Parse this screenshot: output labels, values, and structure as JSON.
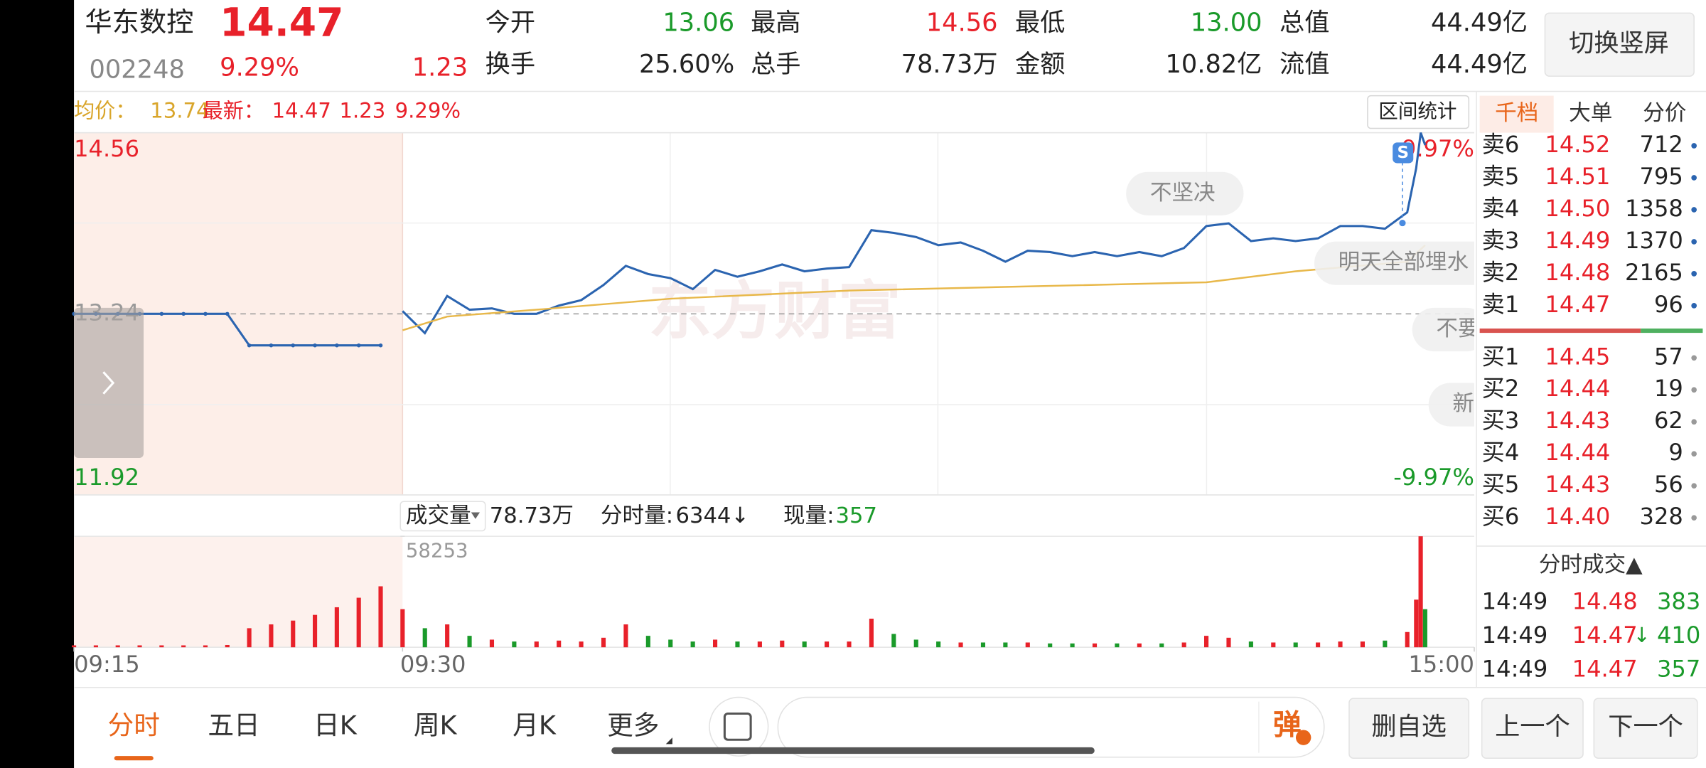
{
  "header": {
    "name": "华东数控",
    "price": "14.47",
    "code": "002248",
    "change_pct": "9.29%",
    "change": "1.23",
    "stats": [
      {
        "label": "今开",
        "value": "13.06",
        "color": "#1a9a2a"
      },
      {
        "label": "最高",
        "value": "14.56",
        "color": "#e8212a"
      },
      {
        "label": "最低",
        "value": "13.00",
        "color": "#1a9a2a"
      },
      {
        "label": "总值",
        "value": "44.49亿",
        "color": "#222222"
      },
      {
        "label": "换手",
        "value": "25.60%",
        "color": "#222222"
      },
      {
        "label": "总手",
        "value": "78.73万",
        "color": "#222222"
      },
      {
        "label": "金额",
        "value": "10.82亿",
        "color": "#222222"
      },
      {
        "label": "流值",
        "value": "44.49亿",
        "color": "#222222"
      }
    ],
    "toggle": "切换竖屏"
  },
  "info_bar": {
    "avg_label": "均价：",
    "avg": "13.74",
    "latest_label": "最新：",
    "latest": "14.47",
    "change": "1.23",
    "change_pct": "9.29%",
    "range_stats": "区间统计"
  },
  "chart_data": [
    {
      "type": "line",
      "xlim": [
        0,
        255
      ],
      "xticks": [
        {
          "value": 0,
          "label": "09:15"
        },
        {
          "value": 15,
          "label": "09:30"
        },
        {
          "value": 255,
          "label": "15:00"
        }
      ],
      "ylim": [
        11.92,
        14.56
      ],
      "yticks": [
        14.56,
        13.24,
        11.92
      ],
      "y2lim": [
        -9.97,
        9.97
      ],
      "y2ticks": [
        {
          "value": 9.97,
          "label": "9.97%"
        },
        {
          "value": -9.97,
          "label": "-9.97%"
        }
      ],
      "watermark": "东方财富",
      "annotations": [
        "不坚决",
        "明天全部埋水",
        "不要",
        "新"
      ],
      "signal": "S",
      "series": [
        {
          "color": "#2b64b0",
          "x": [
            0,
            1,
            2,
            3,
            4,
            5,
            6,
            7,
            8,
            9,
            10,
            11,
            12,
            13,
            14
          ],
          "values": [
            13.24,
            13.24,
            13.24,
            13.24,
            13.24,
            13.24,
            13.24,
            13.24,
            13.01,
            13.01,
            13.01,
            13.01,
            13.01,
            13.01,
            13.01
          ]
        },
        {
          "color": "#2b64b0",
          "x": [
            15,
            20,
            25,
            30,
            35,
            40,
            45,
            50,
            55,
            60,
            65,
            70,
            75,
            80,
            85,
            90,
            95,
            100,
            105,
            110,
            115,
            120,
            125,
            130,
            135,
            140,
            145,
            150,
            155,
            160,
            165,
            170,
            175,
            180,
            185,
            190,
            195,
            200,
            205,
            210,
            215,
            220,
            225,
            230,
            235,
            240,
            242,
            243,
            244
          ],
          "values": [
            13.26,
            13.1,
            13.37,
            13.27,
            13.28,
            13.24,
            13.24,
            13.3,
            13.34,
            13.45,
            13.59,
            13.53,
            13.5,
            13.42,
            13.56,
            13.51,
            13.55,
            13.6,
            13.55,
            13.57,
            13.58,
            13.85,
            13.83,
            13.8,
            13.74,
            13.76,
            13.7,
            13.62,
            13.7,
            13.69,
            13.66,
            13.69,
            13.66,
            13.69,
            13.66,
            13.72,
            13.88,
            13.9,
            13.77,
            13.79,
            13.77,
            13.79,
            13.88,
            13.88,
            13.86,
            13.98,
            14.3,
            14.56,
            14.47
          ]
        },
        {
          "color": "#e8b84a",
          "x": [
            15,
            25,
            45,
            75,
            115,
            155,
            195,
            215,
            240,
            244
          ],
          "values": [
            13.12,
            13.22,
            13.27,
            13.35,
            13.41,
            13.44,
            13.47,
            13.55,
            13.62,
            13.74
          ]
        }
      ]
    },
    {
      "type": "bar",
      "label": "成交量",
      "total": "78.73万",
      "minute_label": "分时量:",
      "minute": "6344↓",
      "current_label": "现量:",
      "current": "357",
      "xlim": [
        0,
        255
      ],
      "ylim": [
        0,
        58253
      ],
      "yticks": [
        58253
      ],
      "colors": {
        "up": "#e8212a",
        "down": "#1a9a2a"
      },
      "series": [
        {
          "x": [
            0,
            1,
            2,
            3,
            4,
            5,
            6,
            7,
            8,
            9,
            10,
            11,
            12,
            13,
            14
          ],
          "values": [
            1000,
            1000,
            1000,
            1000,
            1000,
            1000,
            1000,
            1200,
            10000,
            12000,
            14000,
            17000,
            21000,
            26000,
            32000
          ]
        },
        {
          "x": [
            15,
            20,
            25,
            30,
            35,
            40,
            45,
            50,
            55,
            60,
            65,
            70,
            75,
            80,
            85,
            90,
            95,
            100,
            105,
            110,
            115,
            120,
            125,
            130,
            135,
            140,
            145,
            150,
            155,
            160,
            165,
            170,
            175,
            180,
            185,
            190,
            195,
            200,
            205,
            210,
            215,
            220,
            225,
            230,
            235,
            240,
            242,
            243,
            244
          ],
          "values": [
            20000,
            10000,
            12000,
            6000,
            4000,
            3000,
            3000,
            3500,
            3000,
            5000,
            12000,
            6000,
            4000,
            3000,
            4000,
            3000,
            3000,
            3500,
            3000,
            3000,
            3000,
            15000,
            7000,
            4000,
            3000,
            2500,
            2500,
            2500,
            2500,
            2000,
            2000,
            2000,
            2000,
            2000,
            2000,
            2500,
            6000,
            5000,
            3000,
            2500,
            2500,
            2500,
            3000,
            3000,
            3500,
            8000,
            25000,
            58253,
            20000
          ]
        }
      ]
    }
  ],
  "order_book": {
    "tabs": [
      "千档",
      "大单",
      "分价"
    ],
    "asks": [
      {
        "label": "卖6",
        "price": "14.52",
        "volume": "712"
      },
      {
        "label": "卖5",
        "price": "14.51",
        "volume": "795"
      },
      {
        "label": "卖4",
        "price": "14.50",
        "volume": "1358"
      },
      {
        "label": "卖3",
        "price": "14.49",
        "volume": "1370"
      },
      {
        "label": "卖2",
        "price": "14.48",
        "volume": "2165"
      },
      {
        "label": "卖1",
        "price": "14.47",
        "volume": "96"
      }
    ],
    "bids": [
      {
        "label": "买1",
        "price": "14.45",
        "volume": "57"
      },
      {
        "label": "买2",
        "price": "14.44",
        "volume": "19"
      },
      {
        "label": "买3",
        "price": "14.43",
        "volume": "62"
      },
      {
        "label": "买4",
        "price": "14.44",
        "volume": "9"
      },
      {
        "label": "买5",
        "price": "14.43",
        "volume": "56"
      },
      {
        "label": "买6",
        "price": "14.40",
        "volume": "328"
      }
    ]
  },
  "trades": {
    "title": "分时成交▲",
    "rows": [
      {
        "time": "14:49",
        "price": "14.48",
        "volume": "383"
      },
      {
        "time": "14:49",
        "price": "14.47",
        "mark": "↓",
        "volume": "410"
      },
      {
        "time": "14:49",
        "price": "14.47",
        "volume": "357"
      }
    ]
  },
  "bottom_bar": {
    "tabs": [
      "分时",
      "五日",
      "日K",
      "周K",
      "月K",
      "更多"
    ],
    "danmaku": "弹",
    "buttons": [
      "删自选",
      "上一个",
      "下一个"
    ]
  }
}
